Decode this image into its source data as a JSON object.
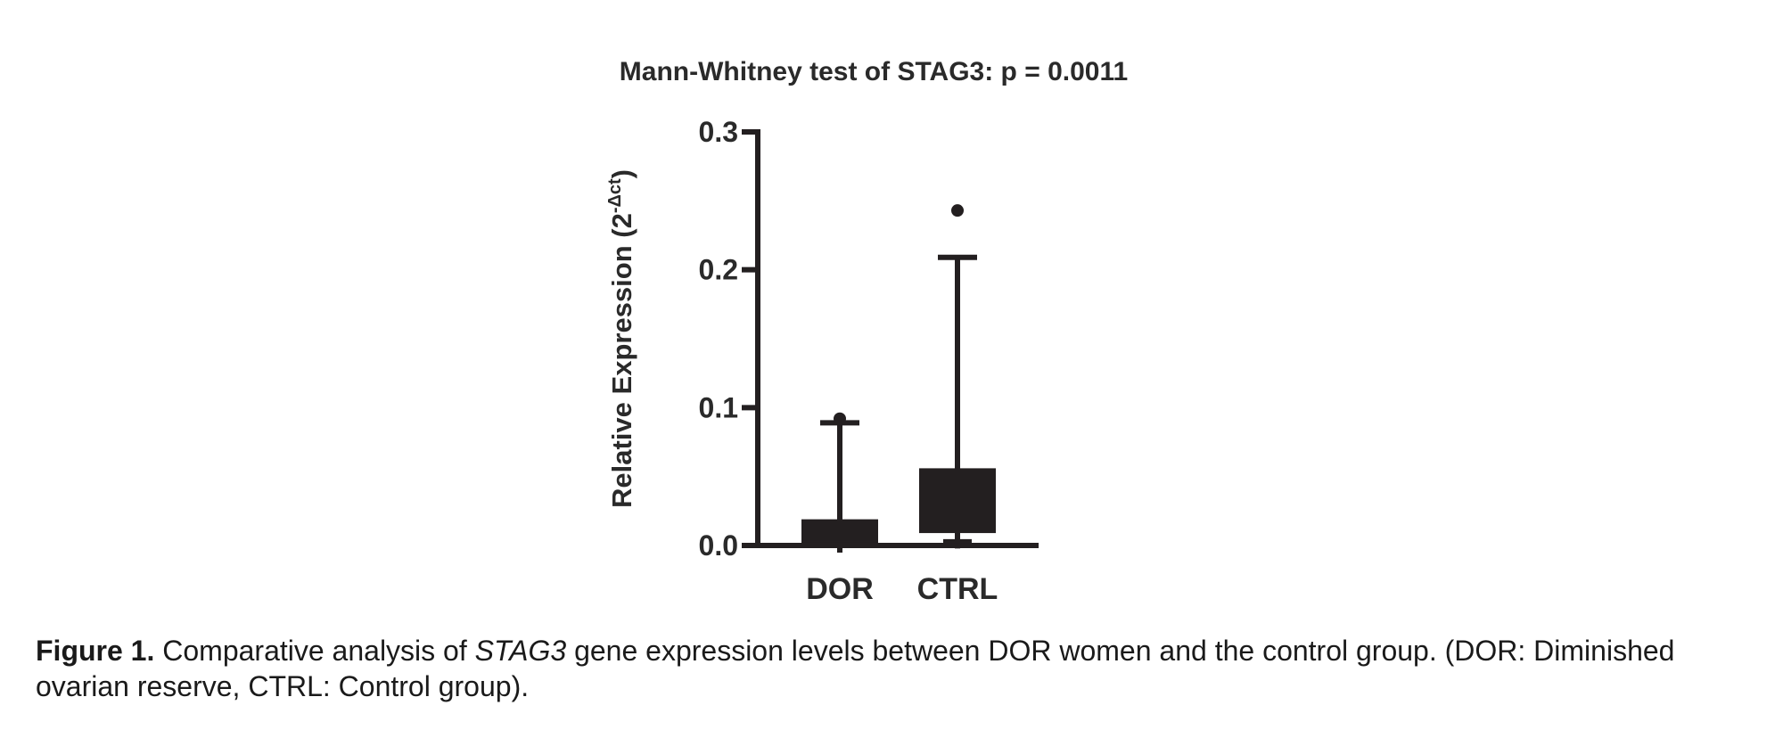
{
  "chart_data": {
    "type": "box",
    "title": "Mann-Whitney test of STAG3: p = 0.0011",
    "ylabel": {
      "main": "Relative Expression (2",
      "sup": "-Δct",
      "close": ")"
    },
    "xlabel": "",
    "ylim": [
      0,
      0.3
    ],
    "yticks": [
      {
        "value": 0.0,
        "label": "0.0"
      },
      {
        "value": 0.1,
        "label": "0.1"
      },
      {
        "value": 0.2,
        "label": "0.2"
      },
      {
        "value": 0.3,
        "label": "0.3"
      }
    ],
    "categories": [
      "DOR",
      "CTRL"
    ],
    "series": [
      {
        "name": "DOR",
        "whisker_low": 0.0,
        "q1": 0.0,
        "median": 0.003,
        "q3": 0.019,
        "whisker_high": 0.089,
        "outliers": [
          0.092
        ]
      },
      {
        "name": "CTRL",
        "whisker_low": 0.003,
        "q1": 0.009,
        "median": 0.012,
        "q3": 0.056,
        "whisker_high": 0.209,
        "outliers": [
          0.243
        ]
      }
    ],
    "grid": false,
    "legend": "none",
    "color": "#231f20"
  },
  "caption": {
    "label": "Figure 1.",
    "before_gene": " Comparative analysis of ",
    "gene": "STAG3",
    "after_gene": " gene expression levels between DOR women and the control group. (DOR: Diminished ovarian reserve, CTRL: Control group)."
  }
}
